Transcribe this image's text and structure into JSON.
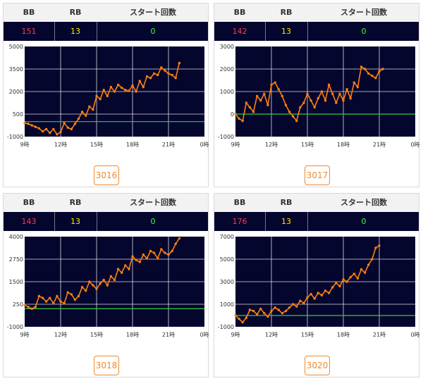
{
  "headers": {
    "bb": "BB",
    "rb": "RB",
    "start": "スタート回数"
  },
  "x_ticks": [
    "9時",
    "12時",
    "15時",
    "18時",
    "21時",
    "0時"
  ],
  "colors": {
    "plot_bg": "#05062e",
    "line": "#ff7f0e",
    "zero_line": "#2ecc40",
    "grid": "#ffffff",
    "bb": "#ff3b57",
    "rb": "#ffe800",
    "start": "#3dff3d",
    "button": "#f08a2e"
  },
  "machines": [
    {
      "machine_no": "3016",
      "bb": "151",
      "rb": "13",
      "start": "0"
    },
    {
      "machine_no": "3017",
      "bb": "142",
      "rb": "13",
      "start": "0"
    },
    {
      "machine_no": "3018",
      "bb": "143",
      "rb": "13",
      "start": "0"
    },
    {
      "machine_no": "3020",
      "bb": "176",
      "rb": "13",
      "start": "0"
    }
  ],
  "chart_data": [
    {
      "type": "line",
      "y_ticks": [
        "5000",
        "3500",
        "2000",
        "500",
        "-1000"
      ],
      "ylim": [
        -1000,
        5000
      ],
      "xlim": [
        9,
        24
      ],
      "x": [
        9.0,
        9.3,
        9.6,
        9.9,
        10.2,
        10.5,
        10.8,
        11.1,
        11.4,
        11.7,
        12.0,
        12.3,
        12.6,
        12.9,
        13.2,
        13.5,
        13.8,
        14.1,
        14.4,
        14.7,
        15.0,
        15.3,
        15.6,
        15.9,
        16.2,
        16.5,
        16.8,
        17.1,
        17.4,
        17.7,
        18.0,
        18.3,
        18.6,
        18.9,
        19.2,
        19.5,
        19.8,
        20.1,
        20.4,
        20.7,
        21.0,
        21.3,
        21.6,
        21.9
      ],
      "y": [
        -100,
        -150,
        -250,
        -350,
        -450,
        -650,
        -500,
        -750,
        -500,
        -850,
        -700,
        -100,
        -400,
        -500,
        -150,
        200,
        650,
        400,
        1000,
        800,
        1700,
        1500,
        2100,
        1700,
        2300,
        2000,
        2450,
        2250,
        2100,
        2050,
        2400,
        2000,
        2700,
        2300,
        3000,
        2900,
        3200,
        3100,
        3600,
        3400,
        3200,
        3100,
        2900,
        3900
      ]
    },
    {
      "type": "line",
      "y_ticks": [
        "3000",
        "2000",
        "1000",
        "0",
        "-1000"
      ],
      "ylim": [
        -1000,
        3000
      ],
      "xlim": [
        9,
        24
      ],
      "x": [
        9.0,
        9.3,
        9.6,
        9.9,
        10.2,
        10.5,
        10.8,
        11.1,
        11.4,
        11.7,
        12.0,
        12.3,
        12.6,
        12.9,
        13.2,
        13.5,
        13.8,
        14.1,
        14.4,
        14.7,
        15.0,
        15.3,
        15.6,
        15.9,
        16.2,
        16.5,
        16.8,
        17.1,
        17.4,
        17.7,
        18.0,
        18.3,
        18.6,
        18.9,
        19.2,
        19.5,
        19.8,
        20.1,
        20.4,
        20.7,
        21.0,
        21.3
      ],
      "y": [
        0,
        -200,
        -300,
        500,
        300,
        100,
        800,
        600,
        900,
        400,
        1300,
        1400,
        1100,
        800,
        400,
        100,
        -100,
        -300,
        300,
        500,
        900,
        600,
        300,
        700,
        1000,
        600,
        1300,
        900,
        500,
        900,
        600,
        1100,
        700,
        1400,
        1200,
        2100,
        2000,
        1800,
        1700,
        1600,
        1900,
        2000
      ]
    },
    {
      "type": "line",
      "y_ticks": [
        "4000",
        "2750",
        "1500",
        "250",
        "-1000"
      ],
      "ylim": [
        -1000,
        4000
      ],
      "xlim": [
        9,
        24
      ],
      "x": [
        9.0,
        9.3,
        9.6,
        9.9,
        10.2,
        10.5,
        10.8,
        11.1,
        11.4,
        11.7,
        12.0,
        12.3,
        12.6,
        12.9,
        13.2,
        13.5,
        13.8,
        14.1,
        14.4,
        14.7,
        15.0,
        15.3,
        15.6,
        15.9,
        16.2,
        16.5,
        16.8,
        17.1,
        17.4,
        17.7,
        18.0,
        18.3,
        18.6,
        18.9,
        19.2,
        19.5,
        19.8,
        20.1,
        20.4,
        20.7,
        21.0,
        21.3,
        21.6,
        21.9
      ],
      "y": [
        200,
        100,
        0,
        100,
        700,
        600,
        400,
        600,
        300,
        700,
        400,
        300,
        900,
        800,
        500,
        700,
        1200,
        1000,
        1500,
        1300,
        1100,
        1400,
        1600,
        1300,
        1800,
        1600,
        2200,
        2000,
        2400,
        2200,
        2900,
        2700,
        2600,
        3000,
        2800,
        3200,
        3100,
        2800,
        3300,
        3100,
        3000,
        3200,
        3600,
        3900
      ]
    },
    {
      "type": "line",
      "y_ticks": [
        "7000",
        "5000",
        "3000",
        "1000",
        "-1000"
      ],
      "ylim": [
        -1000,
        7000
      ],
      "xlim": [
        9,
        24
      ],
      "x": [
        9.0,
        9.3,
        9.6,
        9.9,
        10.2,
        10.5,
        10.8,
        11.1,
        11.4,
        11.7,
        12.0,
        12.3,
        12.6,
        12.9,
        13.2,
        13.5,
        13.8,
        14.1,
        14.4,
        14.7,
        15.0,
        15.3,
        15.6,
        15.9,
        16.2,
        16.5,
        16.8,
        17.1,
        17.4,
        17.7,
        18.0,
        18.3,
        18.6,
        18.9,
        19.2,
        19.5,
        19.8,
        20.1,
        20.4,
        20.7,
        21.0
      ],
      "y": [
        0,
        -300,
        -600,
        -200,
        500,
        400,
        100,
        600,
        200,
        -100,
        400,
        700,
        500,
        200,
        400,
        700,
        1000,
        800,
        1300,
        1100,
        1600,
        1900,
        1500,
        2000,
        1800,
        2200,
        2000,
        2500,
        2900,
        2600,
        3200,
        3000,
        3400,
        3700,
        3300,
        4100,
        3800,
        4500,
        5000,
        6000,
        6200
      ]
    }
  ]
}
